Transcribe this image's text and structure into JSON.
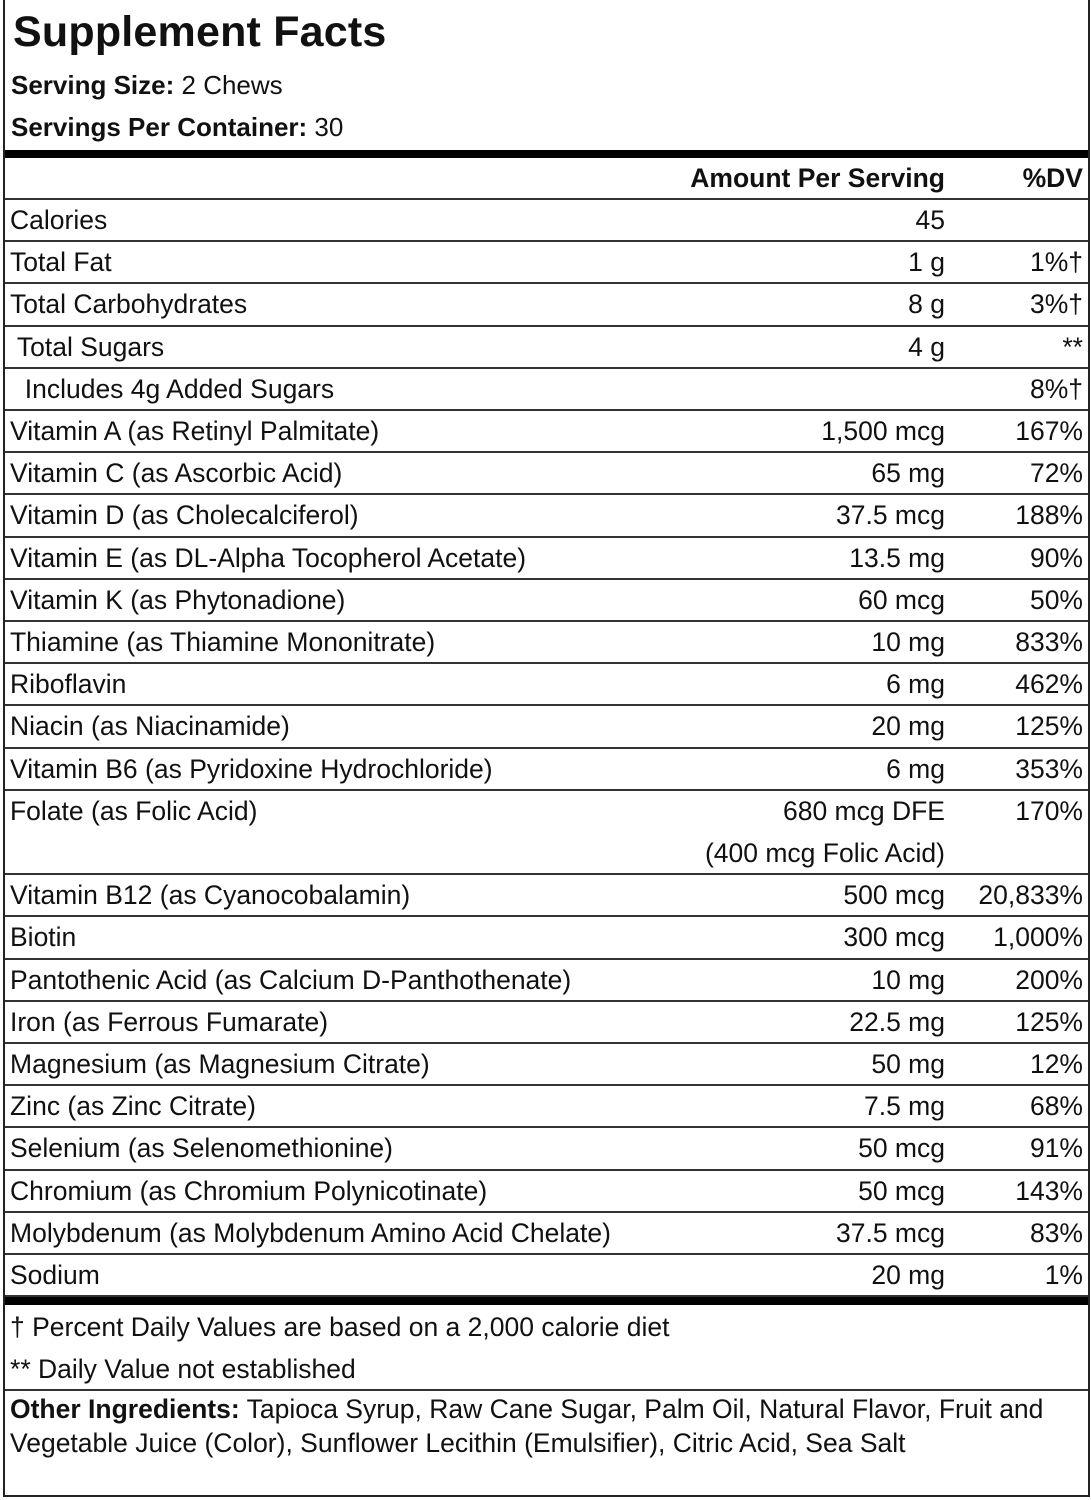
{
  "title": "Supplement Facts",
  "serving_size": {
    "label": "Serving Size:",
    "value": " 2 Chews"
  },
  "servings_per_container": {
    "label": "Servings Per Container:",
    "value": " 30"
  },
  "header": {
    "amount": "Amount Per Serving",
    "dv": "%DV"
  },
  "rows": [
    {
      "name": "Calories",
      "amount": "45",
      "dv": ""
    },
    {
      "name": "Total Fat",
      "amount": "1 g",
      "dv": "1%†"
    },
    {
      "name": "Total Carbohydrates",
      "amount": "8 g",
      "dv": "3%†"
    },
    {
      "name": " Total Sugars",
      "amount": "4 g",
      "dv": "**"
    },
    {
      "name": "  Includes 4g Added Sugars",
      "amount": "",
      "dv": "8%†"
    },
    {
      "name": "Vitamin A (as Retinyl Palmitate)",
      "amount": "1,500 mcg",
      "dv": "167%"
    },
    {
      "name": "Vitamin C (as Ascorbic Acid)",
      "amount": "65 mg",
      "dv": "72%"
    },
    {
      "name": "Vitamin D (as Cholecalciferol)",
      "amount": "37.5 mcg",
      "dv": "188%"
    },
    {
      "name": "Vitamin E (as DL-Alpha Tocopherol Acetate)",
      "amount": "13.5 mg",
      "dv": "90%"
    },
    {
      "name": "Vitamin K (as Phytonadione)",
      "amount": "60 mcg",
      "dv": "50%"
    },
    {
      "name": "Thiamine (as Thiamine Mononitrate)",
      "amount": "10 mg",
      "dv": "833%"
    },
    {
      "name": "Riboflavin",
      "amount": "6 mg",
      "dv": "462%"
    },
    {
      "name": "Niacin (as Niacinamide)",
      "amount": "20 mg",
      "dv": "125%"
    },
    {
      "name": "Vitamin B6 (as Pyridoxine Hydrochloride)",
      "amount": "6 mg",
      "dv": "353%"
    },
    {
      "name": "Folate (as Folic Acid)",
      "amount": "680 mcg DFE",
      "amount2": "(400 mcg Folic Acid)",
      "dv": "170%"
    },
    {
      "name": "Vitamin B12 (as Cyanocobalamin)",
      "amount": "500 mcg",
      "dv": "20,833%"
    },
    {
      "name": "Biotin",
      "amount": "300 mcg",
      "dv": "1,000%"
    },
    {
      "name": "Pantothenic Acid (as Calcium D-Panthothenate)",
      "amount": "10 mg",
      "dv": "200%"
    },
    {
      "name": "Iron (as Ferrous Fumarate)",
      "amount": "22.5 mg",
      "dv": "125%"
    },
    {
      "name": "Magnesium (as Magnesium Citrate)",
      "amount": "50 mg",
      "dv": "12%"
    },
    {
      "name": "Zinc (as Zinc Citrate)",
      "amount": "7.5 mg",
      "dv": "68%"
    },
    {
      "name": "Selenium (as Selenomethionine)",
      "amount": "50 mcg",
      "dv": "91%"
    },
    {
      "name": "Chromium (as Chromium Polynicotinate)",
      "amount": "50 mcg",
      "dv": "143%"
    },
    {
      "name": "Molybdenum (as Molybdenum Amino Acid Chelate)",
      "amount": "37.5 mcg",
      "dv": "83%"
    },
    {
      "name": "Sodium",
      "amount": "20 mg",
      "dv": "1%"
    }
  ],
  "footnotes": [
    "† Percent Daily Values are based on a 2,000 calorie diet",
    "** Daily Value not established"
  ],
  "other_ingredients": {
    "label": "Other Ingredients:",
    "value": " Tapioca Syrup, Raw Cane Sugar, Palm Oil, Natural Flavor, Fruit and Vegetable Juice (Color), Sunflower Lecithin (Emulsifier), Citric Acid, Sea Salt"
  }
}
